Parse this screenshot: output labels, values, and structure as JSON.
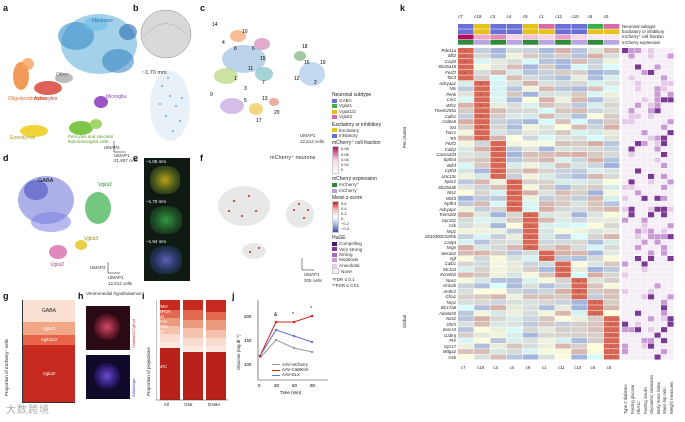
{
  "panels": {
    "a": {
      "label": "a",
      "clusters": [
        "Neurons",
        "Other",
        "Oligodendrocytes",
        "Astrocytes",
        "Microglia",
        "Ependymal",
        "Pericytes and vascular leptomeningeal cells"
      ],
      "umap_x": "UMAP1",
      "umap_y": "UMAP2",
      "cells": "21,607 cells"
    },
    "b": {
      "label": "b",
      "depth": "~1.70 mm"
    },
    "c": {
      "label": "c",
      "cluster_ids": [
        "14",
        "10",
        "4",
        "8",
        "6",
        "15",
        "11",
        "18",
        "1",
        "3",
        "7",
        "12",
        "2",
        "9",
        "5",
        "13",
        "17",
        "16",
        "20",
        "19"
      ],
      "umap_x": "UMAP1",
      "umap_y": "UMAP2",
      "cells": "12,512 cells"
    },
    "d": {
      "label": "d",
      "groups": [
        "GABA",
        "Vglut1",
        "Vglut2",
        "Vglut3"
      ],
      "umap_x": "UMAP1",
      "umap_y": "UMAP2",
      "cells": "12,512 cells"
    },
    "e": {
      "label": "e",
      "depths": [
        "~1.06 mm",
        "~1.70 mm",
        "~1.94 mm"
      ]
    },
    "f": {
      "label": "f",
      "title": "mCherry⁺ neurons",
      "umap_x": "UMAP1",
      "cells": "305 cells"
    },
    "g": {
      "label": "g",
      "ylabel": "Proportion of mCherry⁺ cells",
      "segments": [
        "GABA",
        "Vglut1",
        "Vglut1/2",
        "Vglut2"
      ]
    },
    "h": {
      "label": "h",
      "title": "Ventromedial hypothalamus",
      "row_labels": [
        "GluMaraCCgEnd",
        "GABAergic"
      ]
    },
    "i": {
      "label": "i",
      "ylabel": "Proportion of projections",
      "categories": [
        "All",
        "Glut",
        "GABA"
      ],
      "segments": [
        "VMH",
        "MPOA",
        "AH",
        "PVH",
        "PMH",
        "LH",
        "ARC"
      ]
    },
    "j": {
      "label": "j",
      "ylabel": "Glucose (mg dl⁻¹)",
      "xlabel": "Time (min)",
      "ticks_x": [
        "0",
        "30",
        "60",
        "90"
      ],
      "ticks_y": [
        "100",
        "150",
        "200"
      ],
      "legend": [
        "AAV-mCherry",
        "AAV-CaMKIIA",
        "AAV-DLX"
      ],
      "markers": [
        "&",
        "*"
      ]
    },
    "k": {
      "label": "k"
    }
  },
  "legend": {
    "neuronal_subtype_title": "Neuronal subtype",
    "subtypes": [
      "GABA",
      "Vglut1",
      "Vglut1/2",
      "Vglut2"
    ],
    "exc_inh_title": "Excitatory or inhibitory",
    "exc_inh": [
      "Excitatory",
      "Inhibitory"
    ],
    "fraction_title": "mCherry⁺ cell fraction",
    "fraction_ticks": [
      "0.08",
      "0.06",
      "0.04",
      "0.02",
      "0"
    ],
    "expression_title": "mCherry expression",
    "expression": [
      "mCherry⁺",
      "mCherry⁻"
    ],
    "zscore_title": "Mean z-score",
    "zscore_ticks": [
      "0.6",
      "0.4",
      "0.2",
      "0",
      "−0.2",
      "−0.4"
    ],
    "huge_title": "HuGE",
    "huge": [
      "Compelling",
      "Very strong",
      "Strong",
      "Moderate",
      "Anecdotal",
      "None"
    ],
    "sig1": "*FDR ≤ 0.1",
    "sig2": "**FDR ≤ 0.01"
  },
  "heatmap": {
    "top_columns": [
      "c7",
      "c18",
      "c3",
      "c4",
      "c9",
      "c1",
      "c11",
      "c10",
      "c6",
      "c5"
    ],
    "annotation_rows": [
      "Neuronal subtype",
      "Excitatory or inhibitory",
      "mCherry⁺ cell fraction",
      "mCherry expression"
    ],
    "side_label_top": "Per cluster",
    "side_label_bottom": "Global",
    "genes": [
      "Pde11a",
      "Slit2",
      "C1ql3",
      "Slc35a18",
      "Fezf2",
      "Tac3",
      "Adcyap1",
      "Nts",
      "Penk",
      "Cnr1",
      "Wfs1",
      "Tmem255a",
      "Calb1",
      "Col6a5",
      "Sst",
      "Tacr1",
      "Trh",
      "Fezf2",
      "Calb2",
      "Cacna2d3",
      "Ephb4",
      "Bdnf",
      "Cyth3",
      "Unc13c",
      "Npsr2",
      "Slc29a3b",
      "Nts1",
      "Ntrk3",
      "Npffr4",
      "Adcyap1",
      "Trem183",
      "Gpr101",
      "Cck",
      "Nrp1",
      "2010300C02Rik",
      "Cartpt",
      "Nrgn",
      "Necab2",
      "Vgf",
      "Calb1",
      "Slc1a3",
      "Kcnmb2",
      "Nos1",
      "Grin2b",
      "Amhr2",
      "Gfra1",
      "Nrp1",
      "Slc17a6",
      "Adamts5",
      "Nos2",
      "Ghrh",
      "Sorcs3",
      "Gabrq",
      "Prlr",
      "Gpr17",
      "Mdga2",
      "Gck"
    ],
    "bottom_labels": [
      "c7",
      "c18",
      "c3",
      "c4",
      "c9",
      "c1",
      "c11",
      "c10",
      "c6",
      "c5"
    ],
    "traits": [
      "Type 2 diabetes",
      "Fasting glucose",
      "HbA1c",
      "Fasting insulin",
      "Glycaemic measures",
      "Body mass index",
      "Waist-hip ratio",
      "Weight measures"
    ]
  },
  "colors": {
    "gaba": "#6a6fd6",
    "vglut1": "#3aaf4a",
    "vglut12": "#e6c21a",
    "vglut2": "#d86aa8",
    "excitatory": "#e6c21a",
    "inhibitory": "#6a6fd6",
    "heat_high": "#d7191c",
    "heat_low": "#2c4fa8"
  },
  "watermark": "大数跨境"
}
